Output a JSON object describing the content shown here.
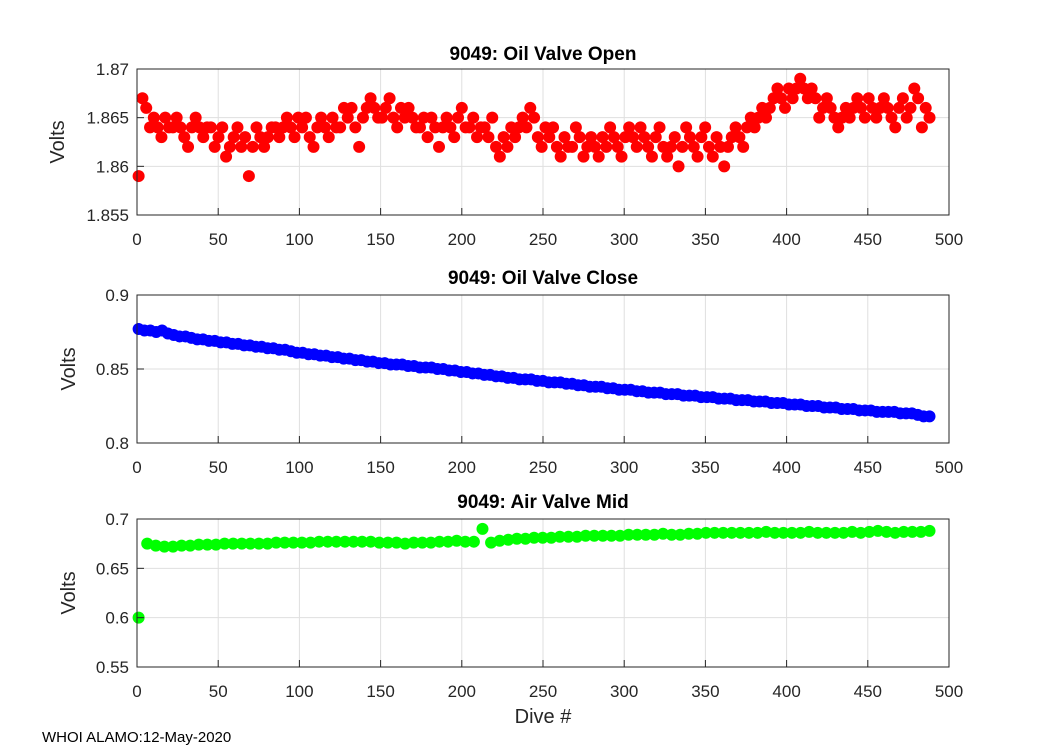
{
  "footer": "WHOI ALAMO:12-May-2020",
  "chart_data": [
    {
      "type": "scatter",
      "title": "9049: Oil Valve Open",
      "xlabel": "",
      "ylabel": "Volts",
      "xlim": [
        0,
        500
      ],
      "ylim": [
        1.855,
        1.87
      ],
      "xticks": [
        0,
        50,
        100,
        150,
        200,
        250,
        300,
        350,
        400,
        450,
        500
      ],
      "yticks": [
        1.855,
        1.86,
        1.865,
        1.87
      ],
      "ytick_labels": [
        "1.855",
        "1.86",
        "1.865",
        "1.87"
      ],
      "color": "#ff0000",
      "grid": true,
      "x_start": 1,
      "x_end": 488,
      "values": [
        1.859,
        1.867,
        1.866,
        1.864,
        1.865,
        1.864,
        1.863,
        1.865,
        1.864,
        1.864,
        1.865,
        1.864,
        1.863,
        1.862,
        1.864,
        1.865,
        1.864,
        1.863,
        1.864,
        1.864,
        1.862,
        1.863,
        1.864,
        1.861,
        1.862,
        1.863,
        1.864,
        1.862,
        1.863,
        1.859,
        1.862,
        1.864,
        1.863,
        1.862,
        1.863,
        1.864,
        1.864,
        1.863,
        1.864,
        1.865,
        1.864,
        1.863,
        1.865,
        1.864,
        1.865,
        1.863,
        1.862,
        1.864,
        1.865,
        1.864,
        1.863,
        1.865,
        1.864,
        1.864,
        1.866,
        1.865,
        1.866,
        1.864,
        1.862,
        1.865,
        1.866,
        1.867,
        1.866,
        1.865,
        1.865,
        1.866,
        1.867,
        1.865,
        1.864,
        1.866,
        1.865,
        1.866,
        1.865,
        1.864,
        1.864,
        1.865,
        1.863,
        1.865,
        1.864,
        1.862,
        1.864,
        1.865,
        1.864,
        1.863,
        1.865,
        1.866,
        1.864,
        1.864,
        1.865,
        1.863,
        1.864,
        1.864,
        1.863,
        1.865,
        1.862,
        1.861,
        1.863,
        1.862,
        1.864,
        1.863,
        1.864,
        1.865,
        1.864,
        1.866,
        1.865,
        1.863,
        1.862,
        1.864,
        1.863,
        1.864,
        1.862,
        1.861,
        1.863,
        1.862,
        1.862,
        1.864,
        1.863,
        1.861,
        1.862,
        1.863,
        1.862,
        1.861,
        1.863,
        1.862,
        1.864,
        1.863,
        1.862,
        1.861,
        1.863,
        1.864,
        1.863,
        1.862,
        1.864,
        1.863,
        1.862,
        1.861,
        1.863,
        1.864,
        1.862,
        1.861,
        1.862,
        1.863,
        1.86,
        1.862,
        1.864,
        1.863,
        1.862,
        1.861,
        1.863,
        1.864,
        1.862,
        1.861,
        1.863,
        1.862,
        1.86,
        1.862,
        1.863,
        1.864,
        1.863,
        1.862,
        1.864,
        1.865,
        1.864,
        1.865,
        1.866,
        1.865,
        1.866,
        1.867,
        1.868,
        1.867,
        1.866,
        1.868,
        1.867,
        1.868,
        1.869,
        1.868,
        1.867,
        1.868,
        1.867,
        1.865,
        1.866,
        1.867,
        1.866,
        1.865,
        1.864,
        1.865,
        1.866,
        1.865,
        1.866,
        1.867,
        1.866,
        1.865,
        1.867,
        1.866,
        1.865,
        1.866,
        1.867,
        1.866,
        1.865,
        1.864,
        1.866,
        1.867,
        1.865,
        1.866,
        1.868,
        1.867,
        1.864,
        1.866,
        1.865
      ]
    },
    {
      "type": "scatter",
      "title": "9049: Oil Valve Close",
      "xlabel": "",
      "ylabel": "Volts",
      "xlim": [
        0,
        500
      ],
      "ylim": [
        0.8,
        0.9
      ],
      "xticks": [
        0,
        50,
        100,
        150,
        200,
        250,
        300,
        350,
        400,
        450,
        500
      ],
      "yticks": [
        0.8,
        0.85,
        0.9
      ],
      "ytick_labels": [
        "0.8",
        "0.85",
        "0.9"
      ],
      "color": "#0000ff",
      "grid": true,
      "x_start": 1,
      "x_end": 488,
      "values": [
        0.877,
        0.876,
        0.876,
        0.875,
        0.876,
        0.874,
        0.873,
        0.872,
        0.872,
        0.871,
        0.87,
        0.87,
        0.869,
        0.869,
        0.868,
        0.868,
        0.867,
        0.867,
        0.866,
        0.866,
        0.865,
        0.865,
        0.864,
        0.864,
        0.863,
        0.863,
        0.862,
        0.861,
        0.861,
        0.86,
        0.86,
        0.859,
        0.859,
        0.858,
        0.858,
        0.857,
        0.857,
        0.856,
        0.856,
        0.855,
        0.855,
        0.854,
        0.854,
        0.853,
        0.853,
        0.853,
        0.852,
        0.852,
        0.851,
        0.851,
        0.851,
        0.85,
        0.85,
        0.849,
        0.849,
        0.848,
        0.848,
        0.847,
        0.847,
        0.846,
        0.846,
        0.845,
        0.845,
        0.844,
        0.844,
        0.843,
        0.843,
        0.843,
        0.842,
        0.842,
        0.841,
        0.841,
        0.841,
        0.84,
        0.84,
        0.839,
        0.839,
        0.838,
        0.838,
        0.838,
        0.837,
        0.837,
        0.836,
        0.836,
        0.836,
        0.835,
        0.835,
        0.834,
        0.834,
        0.834,
        0.833,
        0.833,
        0.833,
        0.832,
        0.832,
        0.832,
        0.831,
        0.831,
        0.831,
        0.83,
        0.83,
        0.83,
        0.829,
        0.829,
        0.829,
        0.828,
        0.828,
        0.828,
        0.827,
        0.827,
        0.827,
        0.826,
        0.826,
        0.826,
        0.825,
        0.825,
        0.825,
        0.824,
        0.824,
        0.824,
        0.823,
        0.823,
        0.823,
        0.822,
        0.822,
        0.822,
        0.821,
        0.821,
        0.821,
        0.821,
        0.82,
        0.82,
        0.82,
        0.819,
        0.818,
        0.818
      ]
    },
    {
      "type": "scatter",
      "title": "9049: Air Valve Mid",
      "xlabel": "Dive #",
      "ylabel": "Volts",
      "xlim": [
        0,
        500
      ],
      "ylim": [
        0.55,
        0.7
      ],
      "xticks": [
        0,
        50,
        100,
        150,
        200,
        250,
        300,
        350,
        400,
        450,
        500
      ],
      "yticks": [
        0.55,
        0.6,
        0.65,
        0.7
      ],
      "ytick_labels": [
        "0.55",
        "0.6",
        "0.65",
        "0.7"
      ],
      "color": "#00ff00",
      "grid": true,
      "x_start": 1,
      "x_end": 488,
      "values": [
        0.6,
        0.675,
        0.673,
        0.672,
        0.672,
        0.673,
        0.673,
        0.674,
        0.674,
        0.674,
        0.675,
        0.675,
        0.675,
        0.675,
        0.675,
        0.675,
        0.676,
        0.676,
        0.676,
        0.676,
        0.676,
        0.677,
        0.677,
        0.677,
        0.677,
        0.677,
        0.677,
        0.677,
        0.676,
        0.676,
        0.676,
        0.675,
        0.676,
        0.676,
        0.676,
        0.677,
        0.677,
        0.678,
        0.677,
        0.677,
        0.69,
        0.676,
        0.678,
        0.679,
        0.68,
        0.68,
        0.681,
        0.681,
        0.681,
        0.682,
        0.682,
        0.682,
        0.683,
        0.683,
        0.683,
        0.683,
        0.683,
        0.684,
        0.684,
        0.684,
        0.684,
        0.685,
        0.684,
        0.684,
        0.685,
        0.685,
        0.686,
        0.686,
        0.686,
        0.686,
        0.686,
        0.686,
        0.686,
        0.687,
        0.686,
        0.686,
        0.686,
        0.686,
        0.687,
        0.686,
        0.686,
        0.686,
        0.686,
        0.687,
        0.686,
        0.687,
        0.688,
        0.687,
        0.686,
        0.687,
        0.687,
        0.687,
        0.688
      ]
    }
  ]
}
